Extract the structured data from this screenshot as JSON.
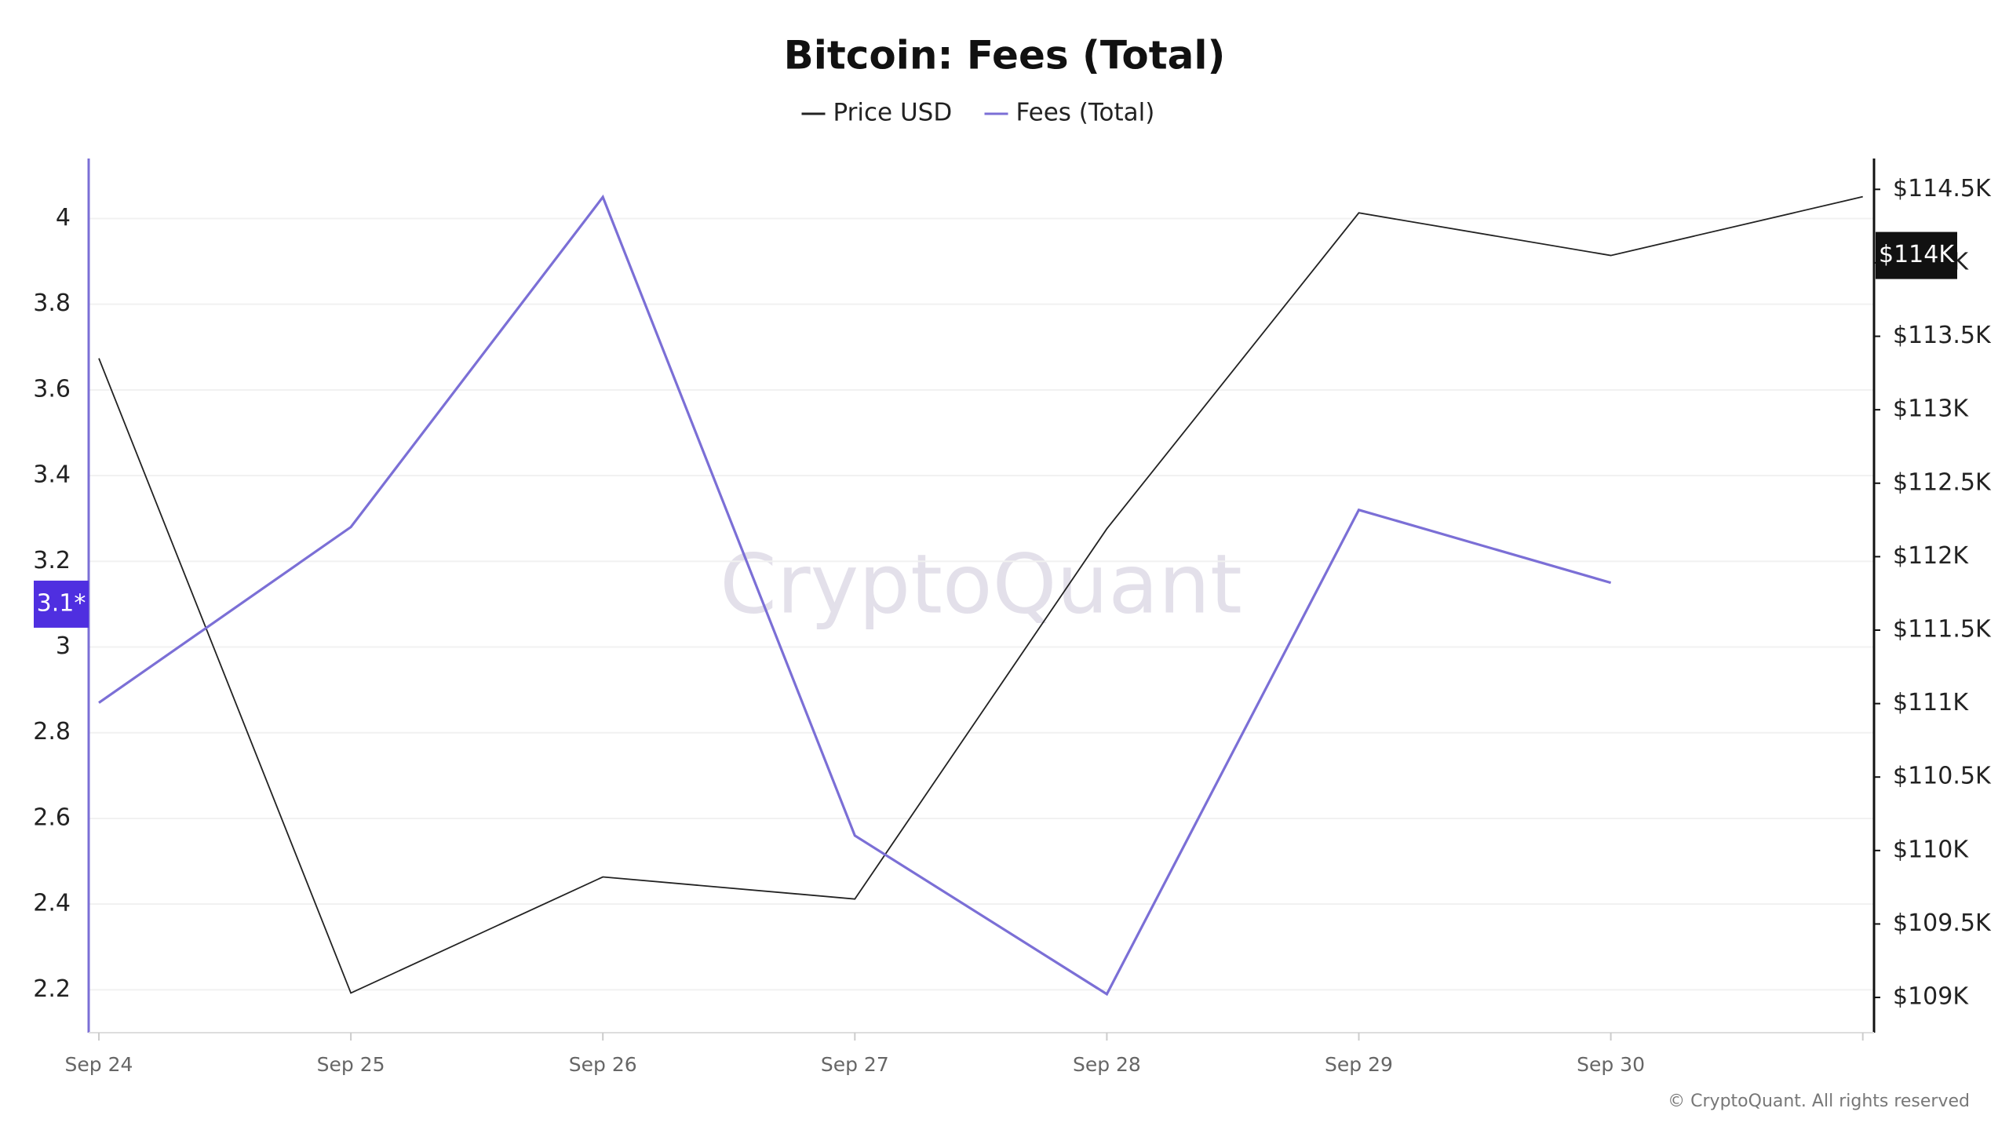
{
  "chart_data": {
    "type": "line",
    "title": "Bitcoin: Fees (Total)",
    "watermark": "CryptoQuant",
    "copyright": "© CryptoQuant. All rights reserved",
    "categories": [
      "Sep 24",
      "Sep 25",
      "Sep 26",
      "Sep 27",
      "Sep 28",
      "Sep 29",
      "Sep 30",
      null
    ],
    "series": [
      {
        "name": "Price USD",
        "color": "#222222",
        "axis": "y2",
        "values": [
          113350,
          109030,
          109820,
          109670,
          112190,
          114340,
          114050,
          114450
        ]
      },
      {
        "name": "Fees (Total)",
        "color": "#7b6fd6",
        "values": [
          2.87,
          3.28,
          4.05,
          2.56,
          2.19,
          3.32,
          3.15,
          null
        ]
      }
    ],
    "ylim": [
      2.1,
      4.14
    ],
    "yticks": [
      2.2,
      2.4,
      2.6,
      2.8,
      3,
      3.2,
      3.4,
      3.6,
      3.8,
      4
    ],
    "y2lim": [
      108760,
      114710
    ],
    "y2ticks": [
      {
        "value": 109000,
        "label": "$109K"
      },
      {
        "value": 109500,
        "label": "$109.5K"
      },
      {
        "value": 110000,
        "label": "$110K"
      },
      {
        "value": 110500,
        "label": "$110.5K"
      },
      {
        "value": 111000,
        "label": "$111K"
      },
      {
        "value": 111500,
        "label": "$111.5K"
      },
      {
        "value": 112000,
        "label": "$112K"
      },
      {
        "value": 112500,
        "label": "$112.5K"
      },
      {
        "value": 113000,
        "label": "$113K"
      },
      {
        "value": 113500,
        "label": "$113.5K"
      },
      {
        "value": 114000,
        "label": "$114K"
      },
      {
        "value": 114500,
        "label": "$114.5K"
      }
    ],
    "grid": true,
    "legend": "top",
    "y_marker": {
      "value": 3.1,
      "label": "3.1*",
      "color": "#4f2fe0"
    },
    "y2_marker": {
      "value": 114050,
      "label": "$114K",
      "color": "#111111"
    }
  }
}
